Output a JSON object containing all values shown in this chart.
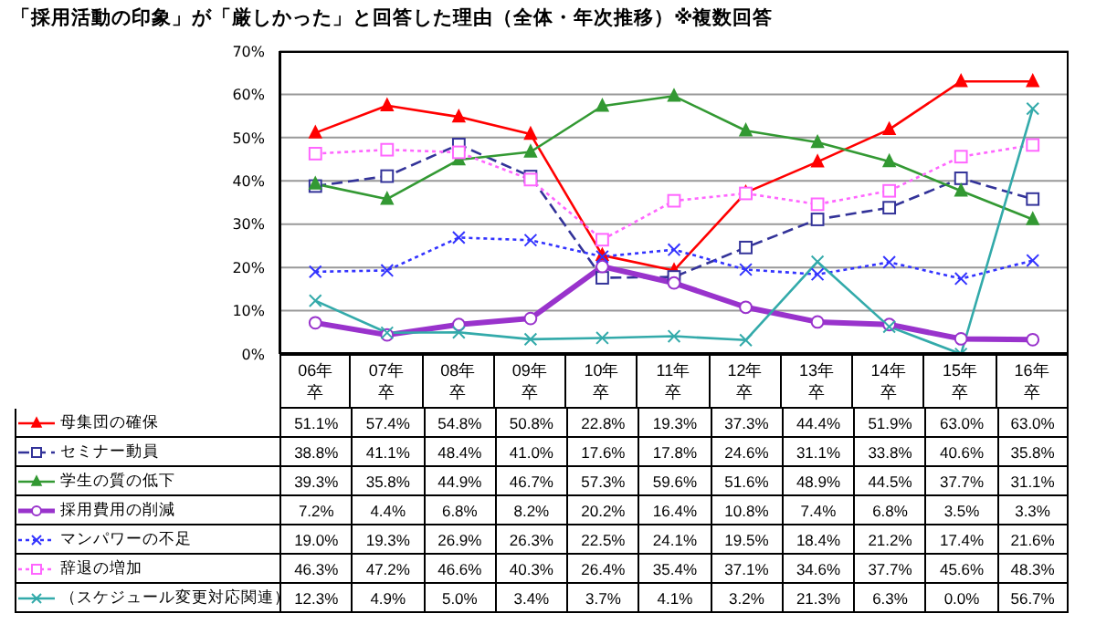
{
  "chart_data": {
    "type": "line",
    "title": "「採用活動の印象」が「厳しかった」と回答した理由（全体・年次推移）※複数回答",
    "categories": [
      "06年卒",
      "07年卒",
      "08年卒",
      "09年卒",
      "10年卒",
      "11年卒",
      "12年卒",
      "13年卒",
      "14年卒",
      "15年卒",
      "16年卒"
    ],
    "ylim": [
      0,
      70
    ],
    "yticks": [
      {
        "value": 0,
        "label": "0%"
      },
      {
        "value": 10,
        "label": "10%"
      },
      {
        "value": 20,
        "label": "20%"
      },
      {
        "value": 30,
        "label": "30%"
      },
      {
        "value": 40,
        "label": "40%"
      },
      {
        "value": 50,
        "label": "50%"
      },
      {
        "value": 60,
        "label": "60%"
      },
      {
        "value": 70,
        "label": "70%"
      }
    ],
    "grid": "y",
    "legend": "bottom left",
    "series": [
      {
        "name": "母集団の確保",
        "color": "#ff0000",
        "marker": "triangle",
        "line_style": "solid",
        "values": [
          51.1,
          57.4,
          54.8,
          50.8,
          22.8,
          19.3,
          37.3,
          44.4,
          51.9,
          63.0,
          63.0
        ],
        "value_labels": [
          "51.1%",
          "57.4%",
          "54.8%",
          "50.8%",
          "22.8%",
          "19.3%",
          "37.3%",
          "44.4%",
          "51.9%",
          "63.0%",
          "63.0%"
        ]
      },
      {
        "name": "セミナー動員",
        "color": "#333399",
        "marker": "square",
        "line_style": "dashed",
        "values": [
          38.8,
          41.1,
          48.4,
          41.0,
          17.6,
          17.8,
          24.6,
          31.1,
          33.8,
          40.6,
          35.8
        ],
        "value_labels": [
          "38.8%",
          "41.1%",
          "48.4%",
          "41.0%",
          "17.6%",
          "17.8%",
          "24.6%",
          "31.1%",
          "33.8%",
          "40.6%",
          "35.8%"
        ]
      },
      {
        "name": "学生の質の低下",
        "color": "#339933",
        "marker": "triangle",
        "line_style": "solid",
        "values": [
          39.3,
          35.8,
          44.9,
          46.7,
          57.3,
          59.6,
          51.6,
          48.9,
          44.5,
          37.7,
          31.1
        ],
        "value_labels": [
          "39.3%",
          "35.8%",
          "44.9%",
          "46.7%",
          "57.3%",
          "59.6%",
          "51.6%",
          "48.9%",
          "44.5%",
          "37.7%",
          "31.1%"
        ]
      },
      {
        "name": "採用費用の削減",
        "color": "#9933cc",
        "marker": "circle",
        "line_style": "solid",
        "values": [
          7.2,
          4.4,
          6.8,
          8.2,
          20.2,
          16.4,
          10.8,
          7.4,
          6.8,
          3.5,
          3.3
        ],
        "value_labels": [
          "7.2%",
          "4.4%",
          "6.8%",
          "8.2%",
          "20.2%",
          "16.4%",
          "10.8%",
          "7.4%",
          "6.8%",
          "3.5%",
          "3.3%"
        ]
      },
      {
        "name": "マンパワーの不足",
        "color": "#3333ff",
        "marker": "cross",
        "line_style": "dotted",
        "values": [
          19.0,
          19.3,
          26.9,
          26.3,
          22.5,
          24.1,
          19.5,
          18.4,
          21.2,
          17.4,
          21.6
        ],
        "value_labels": [
          "19.0%",
          "19.3%",
          "26.9%",
          "26.3%",
          "22.5%",
          "24.1%",
          "19.5%",
          "18.4%",
          "21.2%",
          "17.4%",
          "21.6%"
        ]
      },
      {
        "name": "辞退の増加",
        "color": "#ff66ff",
        "marker": "square",
        "line_style": "dotted",
        "values": [
          46.3,
          47.2,
          46.6,
          40.3,
          26.4,
          35.4,
          37.1,
          34.6,
          37.7,
          45.6,
          48.3
        ],
        "value_labels": [
          "46.3%",
          "47.2%",
          "46.6%",
          "40.3%",
          "26.4%",
          "35.4%",
          "37.1%",
          "34.6%",
          "37.7%",
          "45.6%",
          "48.3%"
        ]
      },
      {
        "name": "（スケジュール変更対応関連）",
        "color": "#33aaaa",
        "marker": "cross",
        "line_style": "solid",
        "values": [
          12.3,
          4.9,
          5.0,
          3.4,
          3.7,
          4.1,
          3.2,
          21.3,
          6.3,
          0.0,
          56.7
        ],
        "value_labels": [
          "12.3%",
          "4.9%",
          "5.0%",
          "3.4%",
          "3.7%",
          "4.1%",
          "3.2%",
          "21.3%",
          "6.3%",
          "0.0%",
          "56.7%"
        ]
      }
    ]
  }
}
